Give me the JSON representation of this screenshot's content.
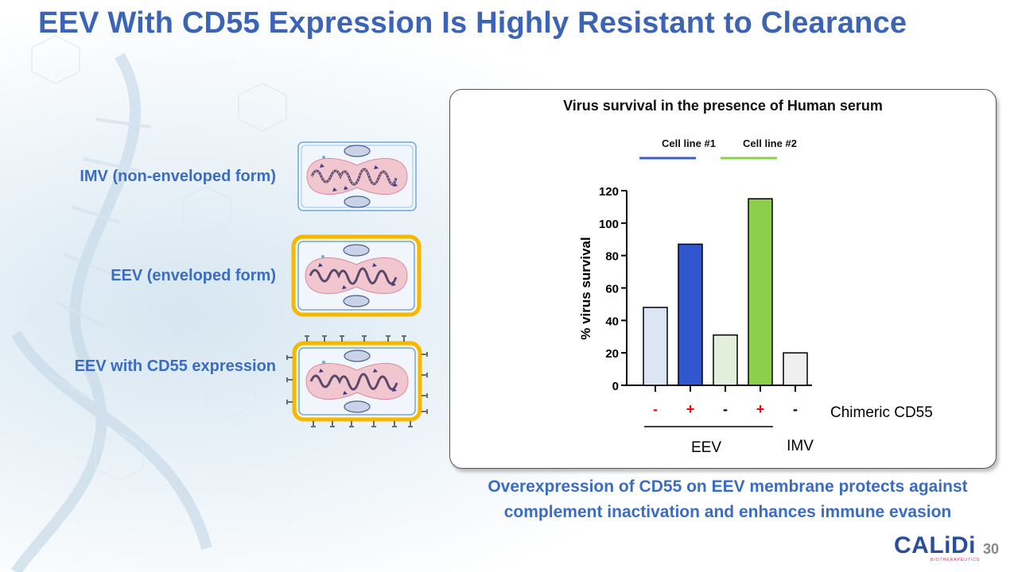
{
  "slide": {
    "title": "EEV With CD55 Expression Is Highly Resistant to Clearance",
    "page_number": "30",
    "conclusion_line1": "Overexpression of CD55 on EEV membrane protects against",
    "conclusion_line2": "complement inactivation and enhances immune evasion"
  },
  "virions": [
    {
      "label": "IMV (non-enveloped form)",
      "icon": "imv-virion-icon"
    },
    {
      "label": "EEV (enveloped form)",
      "icon": "eev-virion-icon"
    },
    {
      "label": "EEV with CD55 expression",
      "icon": "eev-cd55-virion-icon"
    }
  ],
  "logo": {
    "name": "CALiDi",
    "sub": "BIOTHERAPEUTICS"
  },
  "colors": {
    "title": "#3b63b8",
    "accent": "#3b6cc4",
    "envelope": "#f5b800"
  },
  "chart_data": {
    "type": "bar",
    "title": "Virus survival in the presence of Human serum",
    "ylabel": "% virus survival",
    "xlabel": "",
    "ylim": [
      0,
      120
    ],
    "yticks": [
      0,
      20,
      40,
      60,
      80,
      100,
      120
    ],
    "legend": [
      {
        "name": "Cell line #1",
        "color": "#3a5fcd"
      },
      {
        "name": "Cell line #2",
        "color": "#8ccf4d"
      }
    ],
    "categories": [
      "-",
      "+",
      "-",
      "+",
      "-"
    ],
    "category_colors": [
      "#ff0000",
      "#ff0000",
      "#000000",
      "#ff0000",
      "#000000"
    ],
    "values": [
      48,
      87,
      31,
      115,
      20
    ],
    "bar_colors": [
      "#dce5f4",
      "#3057d0",
      "#e3eedb",
      "#8ccf4d",
      "#efefef"
    ],
    "row_label": "Chimeric CD55",
    "groups": [
      {
        "name": "EEV",
        "bars": [
          0,
          1,
          2,
          3
        ]
      },
      {
        "name": "IMV",
        "bars": [
          4
        ]
      }
    ]
  }
}
